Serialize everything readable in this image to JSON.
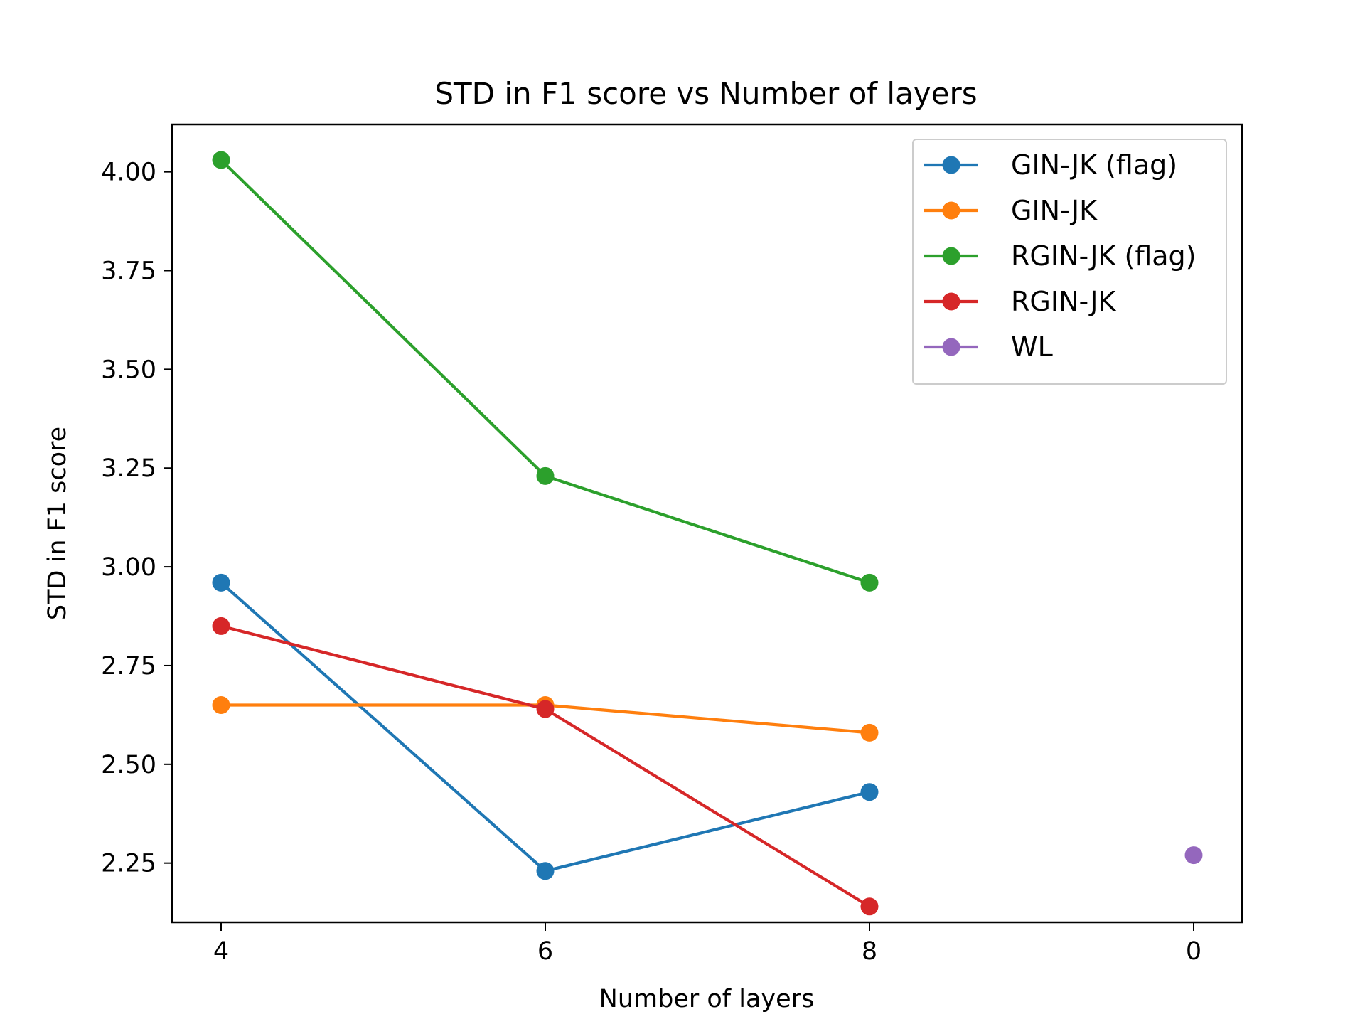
{
  "chart_data": {
    "type": "line",
    "title": "STD in F1 score vs Number of layers",
    "xlabel": "Number of layers",
    "ylabel": "STD in F1 score",
    "categories": [
      "4",
      "6",
      "8",
      "0"
    ],
    "ylim": [
      2.1,
      4.12
    ],
    "yticks": [
      "2.25",
      "2.50",
      "2.75",
      "3.00",
      "3.25",
      "3.50",
      "3.75",
      "4.00"
    ],
    "grid": false,
    "legend_position": "top-right",
    "series": [
      {
        "name": "GIN-JK (flag)",
        "color": "#1f77b4",
        "values": [
          2.96,
          2.23,
          2.43,
          null
        ]
      },
      {
        "name": "GIN-JK",
        "color": "#ff7f0e",
        "values": [
          2.65,
          2.65,
          2.58,
          null
        ]
      },
      {
        "name": "RGIN-JK (flag)",
        "color": "#2ca02c",
        "values": [
          4.03,
          3.23,
          2.96,
          null
        ]
      },
      {
        "name": "RGIN-JK",
        "color": "#d62728",
        "values": [
          2.85,
          2.64,
          2.14,
          null
        ]
      },
      {
        "name": "WL",
        "color": "#9467bd",
        "values": [
          null,
          null,
          null,
          2.27
        ]
      }
    ]
  }
}
